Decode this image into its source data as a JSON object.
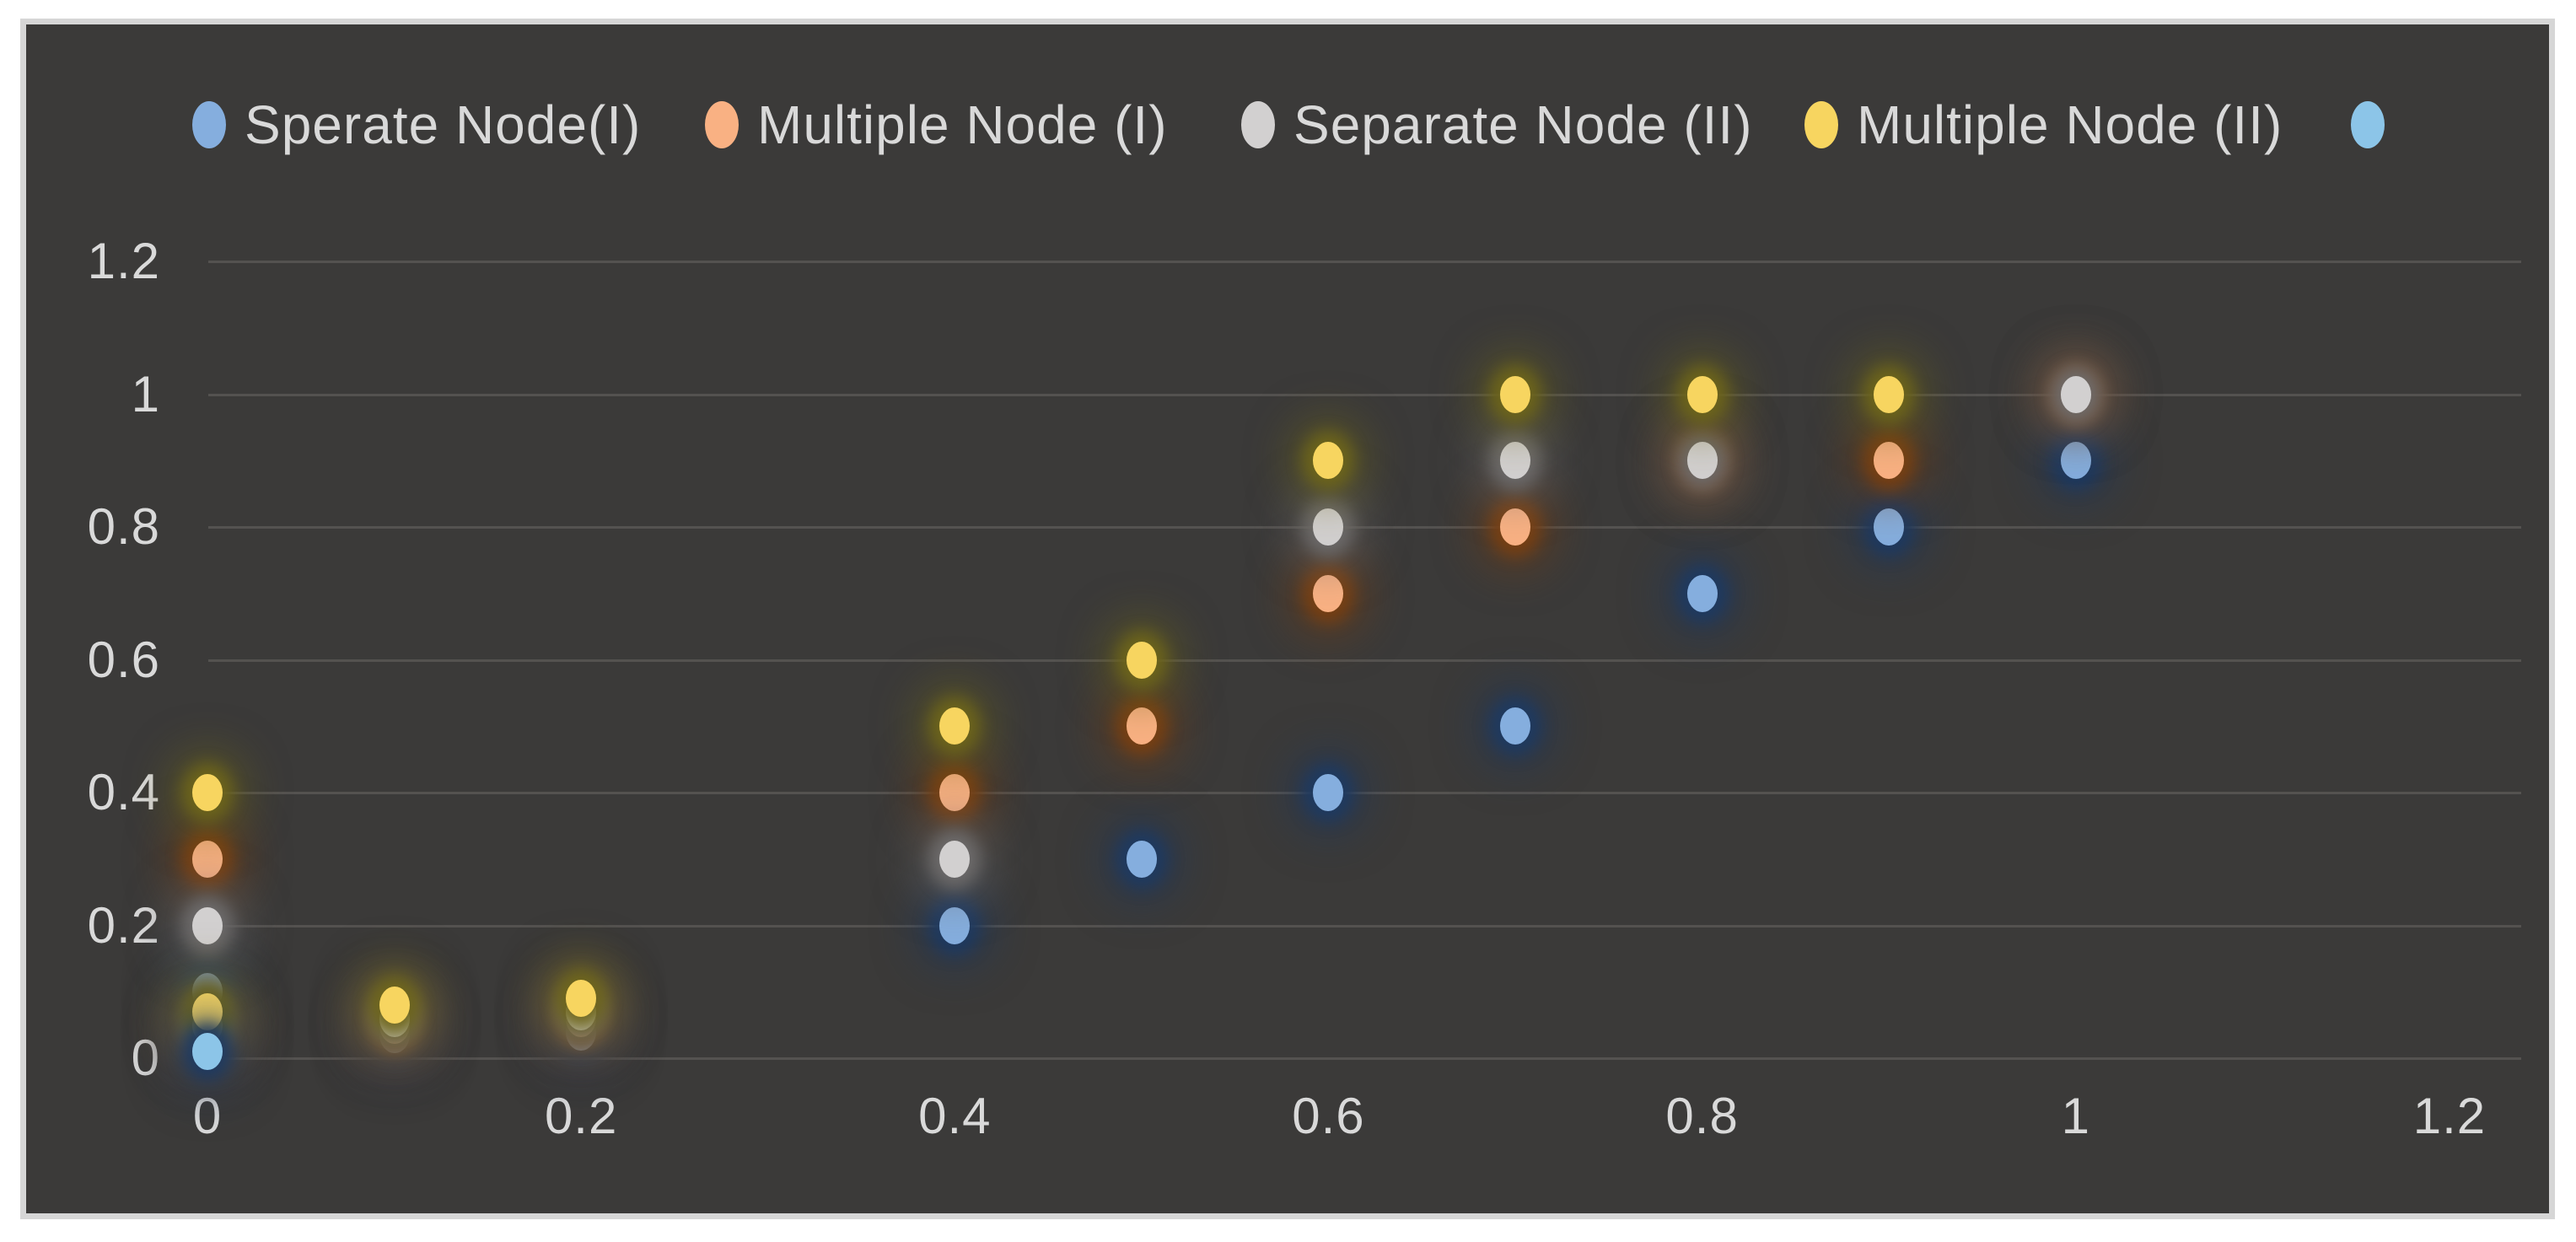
{
  "chart_data": {
    "type": "scatter",
    "title": "",
    "xlabel": "",
    "ylabel": "",
    "xlim": [
      0,
      1.2
    ],
    "ylim": [
      0,
      1.2
    ],
    "x_ticks": [
      0,
      0.2,
      0.4,
      0.6,
      0.8,
      1,
      1.2
    ],
    "y_ticks": [
      0,
      0.2,
      0.4,
      0.6,
      0.8,
      1,
      1.2
    ],
    "x_tick_labels": [
      "0",
      "0.2",
      "0.4",
      "0.6",
      "0.8",
      "1",
      "1.2"
    ],
    "y_tick_labels": [
      "0",
      "0.2",
      "0.4",
      "0.6",
      "0.8",
      "1",
      "1.2"
    ],
    "grid": "horizontal",
    "legend_position": "top",
    "series": [
      {
        "name": "Sperate Node(I)",
        "color": "#85AEDE",
        "glow": "#1E3A62",
        "points": [
          [
            0,
            0.1
          ],
          [
            0.1,
            0.035
          ],
          [
            0.2,
            0.04
          ],
          [
            0.4,
            0.2
          ],
          [
            0.5,
            0.3
          ],
          [
            0.6,
            0.4
          ],
          [
            0.7,
            0.5
          ],
          [
            0.8,
            0.7
          ],
          [
            0.9,
            0.8
          ],
          [
            1,
            0.9
          ]
        ]
      },
      {
        "name": "Multiple Node (I)",
        "color": "#F9B183",
        "glow": "#7A4012",
        "points": [
          [
            0,
            0.04
          ],
          [
            0,
            0.3
          ],
          [
            0.1,
            0.05
          ],
          [
            0.2,
            0.06
          ],
          [
            0.4,
            0.4
          ],
          [
            0.5,
            0.5
          ],
          [
            0.6,
            0.7
          ],
          [
            0.7,
            0.8
          ],
          [
            0.8,
            0.9
          ],
          [
            0.9,
            0.9
          ],
          [
            1,
            1
          ]
        ]
      },
      {
        "name": "Separate Node (II)",
        "color": "#D2D0D0",
        "glow": "#6E6B6B",
        "points": [
          [
            0,
            0.05
          ],
          [
            0,
            0.2
          ],
          [
            0.1,
            0.06
          ],
          [
            0.2,
            0.07
          ],
          [
            0.4,
            0.3
          ],
          [
            0.6,
            0.8
          ],
          [
            0.7,
            0.9
          ],
          [
            0.8,
            0.9
          ],
          [
            1,
            1
          ]
        ]
      },
      {
        "name": "Multiple Node (II)",
        "color": "#F7D560",
        "glow": "#6E651A",
        "points": [
          [
            0,
            0.07
          ],
          [
            0,
            0.4
          ],
          [
            0.1,
            0.08
          ],
          [
            0.2,
            0.09
          ],
          [
            0.4,
            0.5
          ],
          [
            0.5,
            0.6
          ],
          [
            0.6,
            0.9
          ],
          [
            0.7,
            1
          ],
          [
            0.8,
            1
          ],
          [
            0.9,
            1
          ]
        ]
      },
      {
        "name": "",
        "color": "#8CC5E8",
        "glow": "#1E3A62",
        "points": [
          [
            0,
            0.01
          ]
        ]
      }
    ]
  },
  "legend": {
    "items": [
      {
        "label": "Sperate Node(I)",
        "color": "#85AEDE",
        "x": 228
      },
      {
        "label": "Multiple Node (I)",
        "color": "#F9B183",
        "x": 836
      },
      {
        "label": "Separate Node (II)",
        "color": "#D2D0D0",
        "x": 1472
      },
      {
        "label": "Multiple Node (II)",
        "color": "#F7D560",
        "x": 2140
      },
      {
        "label": "",
        "color": "#8CC5E8",
        "x": 2788
      }
    ]
  },
  "colors": {
    "page_background": "#FFFFFF",
    "frame_border": "#D6D6D6",
    "plot_background": "#3B3A39",
    "gridline": "#545250",
    "axis_text": "#D9D9D9"
  }
}
